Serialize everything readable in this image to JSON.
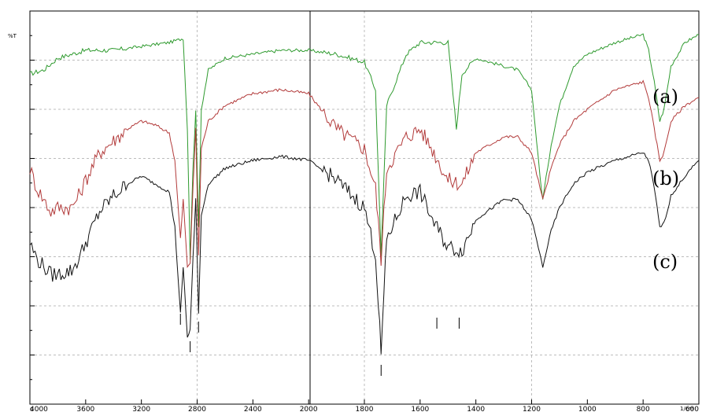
{
  "chart_data": {
    "type": "line",
    "ylabel": "%T",
    "xlabel": "1/cm",
    "x_origin_label": "0",
    "x_reversed": true,
    "xlim": [
      4000,
      600
    ],
    "x_ticks": [
      4000,
      3600,
      3200,
      2800,
      2400,
      2000,
      1800,
      1600,
      1400,
      1200,
      1000,
      800,
      600
    ],
    "x_tick_labels": [
      "4000",
      "3600",
      "3200",
      "2800",
      "2400",
      "2000",
      "1800",
      "1600",
      "1400",
      "1200",
      "1000",
      "800",
      "600"
    ],
    "grid": true,
    "series": [
      {
        "name": "(a)",
        "color": "#2e9a2e",
        "points": [
          [
            4000,
            84
          ],
          [
            3900,
            85
          ],
          [
            3800,
            88
          ],
          [
            3700,
            89
          ],
          [
            3600,
            90
          ],
          [
            3400,
            90
          ],
          [
            3200,
            91
          ],
          [
            3000,
            92
          ],
          [
            2900,
            93
          ],
          [
            2870,
            70
          ],
          [
            2850,
            37
          ],
          [
            2830,
            60
          ],
          [
            2810,
            75
          ],
          [
            2790,
            45
          ],
          [
            2770,
            75
          ],
          [
            2720,
            85
          ],
          [
            2600,
            88
          ],
          [
            2400,
            89
          ],
          [
            2200,
            90
          ],
          [
            2000,
            90
          ],
          [
            1900,
            89
          ],
          [
            1800,
            87
          ],
          [
            1760,
            80
          ],
          [
            1740,
            38
          ],
          [
            1720,
            76
          ],
          [
            1650,
            89
          ],
          [
            1600,
            92
          ],
          [
            1500,
            92
          ],
          [
            1470,
            70
          ],
          [
            1450,
            84
          ],
          [
            1400,
            88
          ],
          [
            1300,
            86
          ],
          [
            1250,
            85
          ],
          [
            1200,
            80
          ],
          [
            1170,
            58
          ],
          [
            1160,
            52
          ],
          [
            1130,
            66
          ],
          [
            1100,
            76
          ],
          [
            1050,
            86
          ],
          [
            1000,
            89
          ],
          [
            900,
            92
          ],
          [
            800,
            94
          ],
          [
            780,
            90
          ],
          [
            760,
            82
          ],
          [
            740,
            72
          ],
          [
            725,
            75
          ],
          [
            700,
            86
          ],
          [
            650,
            92
          ],
          [
            600,
            94
          ]
        ]
      },
      {
        "name": "(b)",
        "color": "#b23a3a",
        "points": [
          [
            4000,
            60
          ],
          [
            3950,
            55
          ],
          [
            3900,
            52
          ],
          [
            3850,
            49
          ],
          [
            3800,
            50
          ],
          [
            3700,
            50
          ],
          [
            3650,
            53
          ],
          [
            3600,
            57
          ],
          [
            3500,
            64
          ],
          [
            3400,
            67
          ],
          [
            3300,
            70
          ],
          [
            3200,
            72
          ],
          [
            3100,
            71
          ],
          [
            3000,
            69
          ],
          [
            2960,
            62
          ],
          [
            2920,
            42
          ],
          [
            2900,
            52
          ],
          [
            2870,
            35
          ],
          [
            2850,
            36
          ],
          [
            2830,
            55
          ],
          [
            2810,
            70
          ],
          [
            2790,
            38
          ],
          [
            2770,
            65
          ],
          [
            2720,
            72
          ],
          [
            2600,
            76
          ],
          [
            2400,
            79
          ],
          [
            2200,
            80
          ],
          [
            2000,
            79
          ],
          [
            1900,
            70
          ],
          [
            1800,
            65
          ],
          [
            1760,
            55
          ],
          [
            1740,
            37
          ],
          [
            1720,
            60
          ],
          [
            1650,
            68
          ],
          [
            1600,
            70
          ],
          [
            1550,
            64
          ],
          [
            1500,
            57
          ],
          [
            1450,
            56
          ],
          [
            1400,
            64
          ],
          [
            1300,
            68
          ],
          [
            1250,
            68
          ],
          [
            1200,
            64
          ],
          [
            1170,
            55
          ],
          [
            1160,
            52
          ],
          [
            1130,
            60
          ],
          [
            1100,
            66
          ],
          [
            1050,
            72
          ],
          [
            1000,
            75
          ],
          [
            900,
            80
          ],
          [
            800,
            82
          ],
          [
            780,
            78
          ],
          [
            760,
            70
          ],
          [
            740,
            62
          ],
          [
            725,
            64
          ],
          [
            700,
            72
          ],
          [
            650,
            76
          ],
          [
            600,
            78
          ]
        ]
      },
      {
        "name": "(c)",
        "color": "#111111",
        "points": [
          [
            4000,
            41
          ],
          [
            3950,
            37
          ],
          [
            3900,
            35
          ],
          [
            3850,
            33
          ],
          [
            3800,
            33
          ],
          [
            3700,
            34
          ],
          [
            3650,
            37
          ],
          [
            3600,
            41
          ],
          [
            3500,
            49
          ],
          [
            3400,
            53
          ],
          [
            3300,
            56
          ],
          [
            3200,
            58
          ],
          [
            3100,
            56
          ],
          [
            3000,
            54
          ],
          [
            2960,
            45
          ],
          [
            2920,
            23
          ],
          [
            2900,
            35
          ],
          [
            2870,
            17
          ],
          [
            2850,
            19
          ],
          [
            2830,
            37
          ],
          [
            2810,
            52
          ],
          [
            2790,
            23
          ],
          [
            2770,
            48
          ],
          [
            2720,
            56
          ],
          [
            2600,
            60
          ],
          [
            2400,
            62
          ],
          [
            2200,
            63
          ],
          [
            2000,
            62
          ],
          [
            1900,
            57
          ],
          [
            1800,
            50
          ],
          [
            1760,
            38
          ],
          [
            1740,
            13
          ],
          [
            1720,
            42
          ],
          [
            1650,
            53
          ],
          [
            1600,
            54
          ],
          [
            1550,
            46
          ],
          [
            1500,
            40
          ],
          [
            1450,
            39
          ],
          [
            1400,
            47
          ],
          [
            1300,
            52
          ],
          [
            1250,
            52
          ],
          [
            1200,
            47
          ],
          [
            1170,
            38
          ],
          [
            1160,
            35
          ],
          [
            1130,
            44
          ],
          [
            1100,
            50
          ],
          [
            1050,
            56
          ],
          [
            1000,
            59
          ],
          [
            900,
            62
          ],
          [
            800,
            64
          ],
          [
            780,
            62
          ],
          [
            760,
            55
          ],
          [
            740,
            45
          ],
          [
            725,
            46
          ],
          [
            700,
            53
          ],
          [
            650,
            58
          ],
          [
            600,
            62
          ]
        ]
      }
    ],
    "peak_markers": [
      [
        2920,
        23
      ],
      [
        2850,
        16
      ],
      [
        2790,
        21
      ],
      [
        1740,
        10
      ],
      [
        1540,
        22
      ],
      [
        1460,
        22
      ]
    ]
  }
}
